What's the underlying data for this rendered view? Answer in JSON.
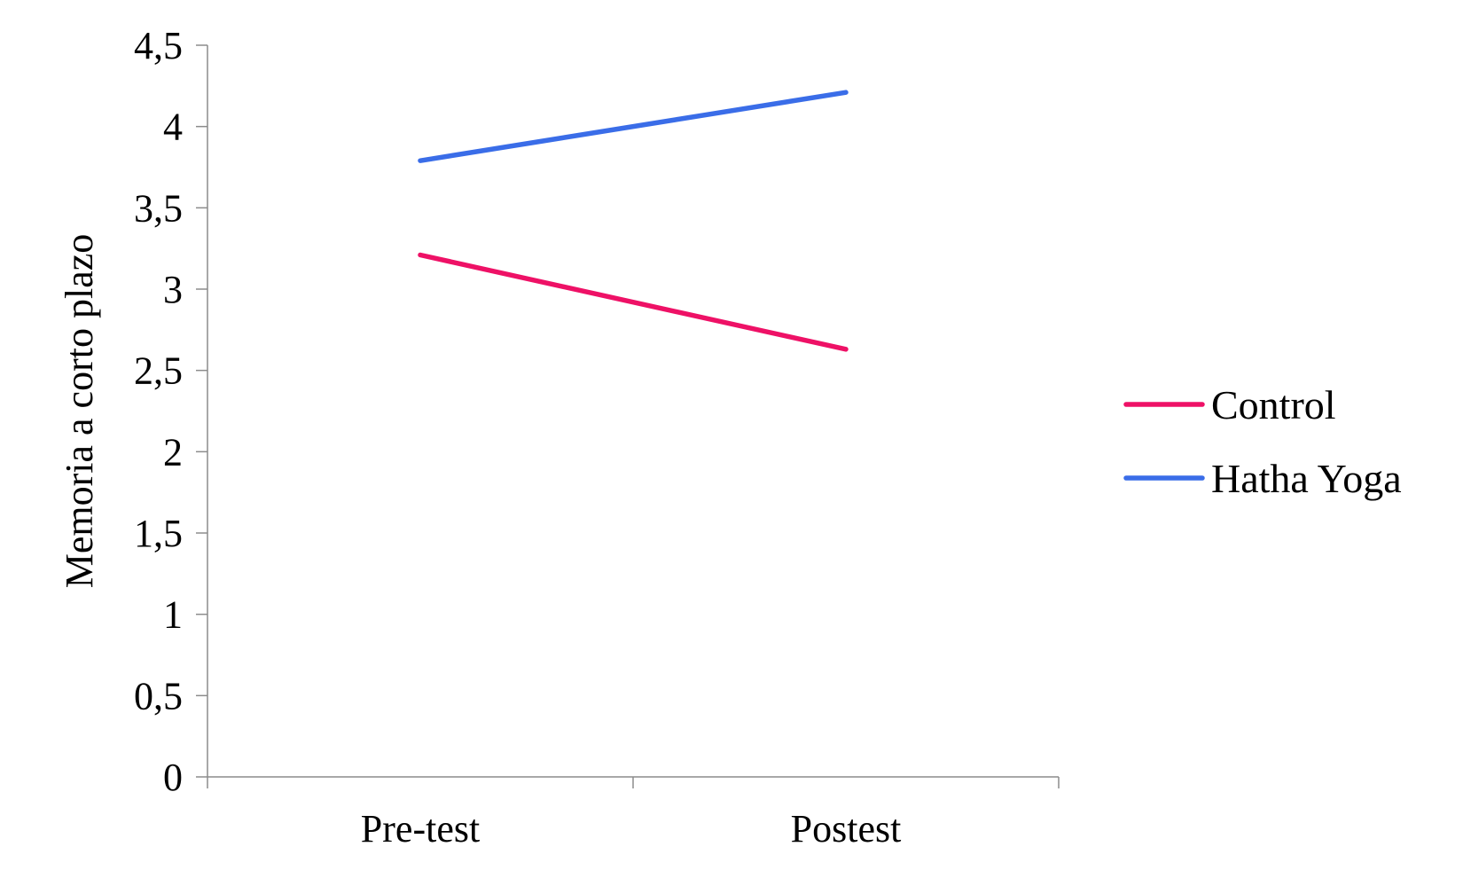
{
  "chart_data": {
    "type": "line",
    "title": "",
    "xlabel": "",
    "ylabel": "Memoria a corto plazo",
    "categories": [
      "Pre-test",
      "Postest"
    ],
    "ylim": [
      0,
      4.5
    ],
    "yticks": [
      0,
      0.5,
      1,
      1.5,
      2,
      2.5,
      3,
      3.5,
      4,
      4.5
    ],
    "ytick_labels": [
      "0",
      "0,5",
      "1",
      "1,5",
      "2",
      "2,5",
      "3",
      "3,5",
      "4",
      "4,5"
    ],
    "grid": false,
    "legend_position": "right",
    "series": [
      {
        "name": "Control",
        "color": "#ee1166",
        "values": [
          3.21,
          2.63
        ]
      },
      {
        "name": "Hatha Yoga",
        "color": "#3a6de8",
        "values": [
          3.79,
          4.21
        ]
      }
    ]
  }
}
